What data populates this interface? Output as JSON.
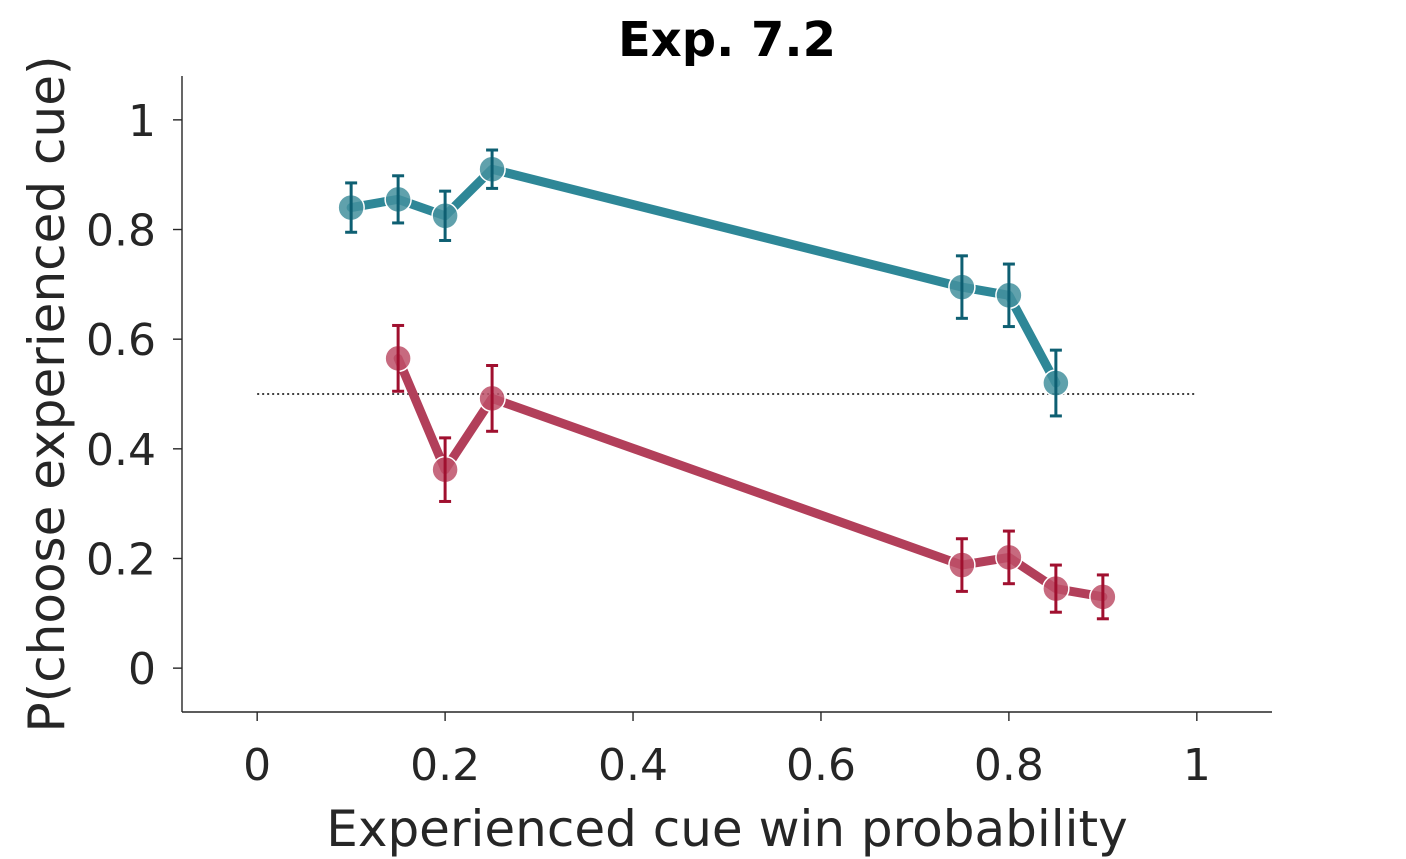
{
  "chart_data": {
    "type": "line",
    "title": "Exp. 7.2",
    "xlabel": "Experienced cue win probability",
    "ylabel": "P(choose experienced cue)",
    "xlim": [
      -0.08,
      1.08
    ],
    "ylim": [
      -0.08,
      1.08
    ],
    "xticks": [
      0,
      0.2,
      0.4,
      0.6,
      0.8,
      1
    ],
    "xtick_labels": [
      "0",
      "0.2",
      "0.4",
      "0.6",
      "0.8",
      "1"
    ],
    "yticks": [
      0,
      0.2,
      0.4,
      0.6,
      0.8,
      1
    ],
    "ytick_labels": [
      "0",
      "0.2",
      "0.4",
      "0.6",
      "0.8",
      "1"
    ],
    "grid": false,
    "reference_line": {
      "y": 0.5,
      "x_range": [
        0,
        1
      ],
      "style": "dotted",
      "color": "#000000"
    },
    "series": [
      {
        "color": "#2e8797",
        "marker_color": "#44909e",
        "error_color": "#0e5f72",
        "x": [
          0.1,
          0.15,
          0.2,
          0.25,
          0.75,
          0.8,
          0.85
        ],
        "y": [
          0.84,
          0.855,
          0.825,
          0.91,
          0.695,
          0.68,
          0.52
        ],
        "err": [
          0.045,
          0.043,
          0.045,
          0.035,
          0.057,
          0.057,
          0.06
        ]
      },
      {
        "color": "#b23f5a",
        "marker_color": "#bd5068",
        "error_color": "#a0102f",
        "x": [
          0.15,
          0.2,
          0.25,
          0.75,
          0.8,
          0.85,
          0.9
        ],
        "y": [
          0.565,
          0.362,
          0.492,
          0.188,
          0.202,
          0.145,
          0.13
        ],
        "err": [
          0.06,
          0.058,
          0.06,
          0.048,
          0.048,
          0.043,
          0.04
        ]
      }
    ]
  }
}
